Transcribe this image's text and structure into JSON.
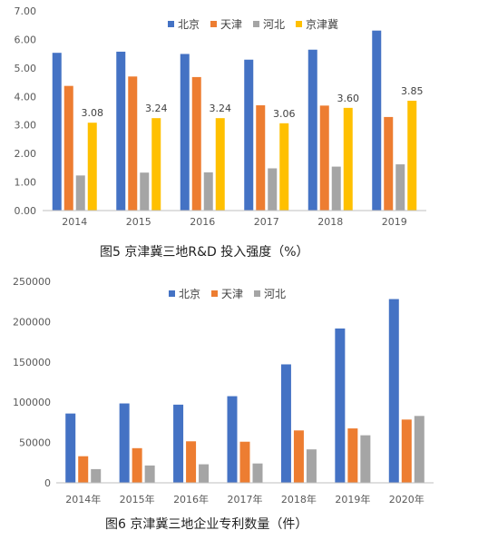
{
  "colors": {
    "beijing": "#4472C4",
    "tianjin": "#ED7D31",
    "hebei": "#A5A5A5",
    "jjj": "#FFC000"
  },
  "chart_data": [
    {
      "type": "bar",
      "title": "图5 京津冀三地R&D 投入强度（%）",
      "categories": [
        "2014",
        "2015",
        "2016",
        "2017",
        "2018",
        "2019"
      ],
      "ylim": [
        0,
        7
      ],
      "yticks": [
        "0.00",
        "1.00",
        "2.00",
        "3.00",
        "4.00",
        "5.00",
        "6.00",
        "7.00"
      ],
      "grid": false,
      "legend_position": "top",
      "series": [
        {
          "name": "北京",
          "color_key": "beijing",
          "values": [
            5.53,
            5.57,
            5.49,
            5.29,
            5.64,
            6.31
          ]
        },
        {
          "name": "天津",
          "color_key": "tianjin",
          "values": [
            4.37,
            4.7,
            4.68,
            3.69,
            3.68,
            3.28
          ]
        },
        {
          "name": "河北",
          "color_key": "hebei",
          "values": [
            1.23,
            1.33,
            1.34,
            1.48,
            1.54,
            1.62
          ]
        },
        {
          "name": "京津冀",
          "color_key": "jjj",
          "values": [
            3.08,
            3.24,
            3.24,
            3.06,
            3.6,
            3.85
          ],
          "labels": [
            "3.08",
            "3.24",
            "3.24",
            "3.06",
            "3.60",
            "3.85"
          ]
        }
      ]
    },
    {
      "type": "bar",
      "title": "图6 京津冀三地企业专利数量（件）",
      "categories": [
        "2014年",
        "2015年",
        "2016年",
        "2017年",
        "2018年",
        "2019年",
        "2020年"
      ],
      "ylim": [
        0,
        250000
      ],
      "yticks": [
        "0",
        "50000",
        "100000",
        "150000",
        "200000",
        "250000"
      ],
      "grid": false,
      "legend_position": "top",
      "series": [
        {
          "name": "北京",
          "color_key": "beijing",
          "values": [
            86000,
            98500,
            97000,
            107500,
            147000,
            191500,
            228000
          ]
        },
        {
          "name": "天津",
          "color_key": "tianjin",
          "values": [
            33000,
            43000,
            51500,
            51000,
            65000,
            67500,
            78500
          ]
        },
        {
          "name": "河北",
          "color_key": "hebei",
          "values": [
            17000,
            21500,
            23000,
            24000,
            41500,
            59000,
            83000
          ]
        }
      ]
    }
  ]
}
